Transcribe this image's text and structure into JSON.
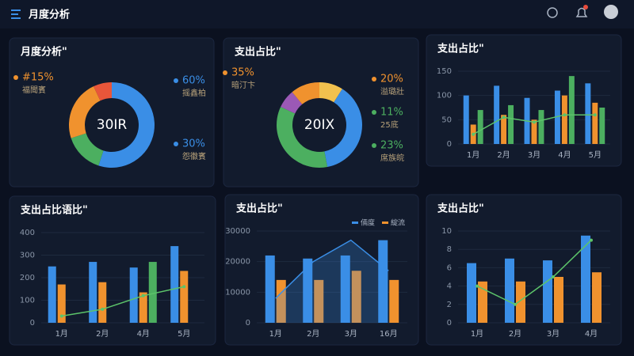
{
  "header": {
    "title": "月度分析"
  },
  "chart_data": [
    {
      "type": "donut",
      "title": "月度分析\"",
      "center": "30IR",
      "values": [
        55,
        15,
        23,
        7
      ],
      "colors": [
        "#3a8ee6",
        "#4caf60",
        "#f0922e",
        "#e8563a"
      ],
      "annotations": [
        {
          "text": "#15%",
          "sub": "福聞賓",
          "color": "#f0922e"
        },
        {
          "text": "60%",
          "sub": "摇鑫柏",
          "color": "#3a8ee6"
        },
        {
          "text": "30%",
          "sub": "怨徽賓",
          "color": "#3a8ee6"
        }
      ]
    },
    {
      "type": "donut",
      "title": "支出占比\"",
      "center": "20IX",
      "values": [
        9,
        38,
        35,
        7,
        11
      ],
      "colors": [
        "#f2c14e",
        "#3a8ee6",
        "#4caf60",
        "#9b59b6",
        "#f0922e"
      ],
      "annotations": [
        {
          "text": "35%",
          "sub": "暗汀卞",
          "color": "#f0922e"
        },
        {
          "text": "20%",
          "sub": "溢璐壯",
          "color": "#f0922e"
        },
        {
          "text": "11%",
          "sub": "25底",
          "color": "#4caf60"
        },
        {
          "text": "23%",
          "sub": "席族皖",
          "color": "#4caf60"
        }
      ]
    },
    {
      "type": "bar",
      "title": "支出占比\"",
      "categories": [
        "1月",
        "2月",
        "3月",
        "4月",
        "5月"
      ],
      "ylim": [
        0,
        150
      ],
      "yticks": [
        0,
        50,
        100,
        150
      ],
      "series": [
        {
          "kind": "bar",
          "color": "#3a8ee6",
          "values": [
            100,
            120,
            95,
            110,
            125
          ]
        },
        {
          "kind": "bar",
          "color": "#f0922e",
          "values": [
            40,
            60,
            50,
            100,
            85
          ]
        },
        {
          "kind": "bar",
          "color": "#4caf60",
          "values": [
            70,
            80,
            70,
            140,
            75
          ]
        },
        {
          "kind": "line",
          "color": "#5cc46a",
          "values": [
            20,
            55,
            45,
            60,
            60
          ]
        }
      ]
    },
    {
      "type": "bar",
      "title": "支出占比语比\"",
      "categories": [
        "1月",
        "2月",
        "4月",
        "5月"
      ],
      "ylim": [
        0,
        400
      ],
      "yticks": [
        0,
        100,
        200,
        300,
        400
      ],
      "series": [
        {
          "kind": "bar",
          "color": "#3a8ee6",
          "values": [
            250,
            270,
            245,
            340
          ]
        },
        {
          "kind": "bar",
          "color": "#f0922e",
          "values": [
            170,
            180,
            135,
            230
          ]
        },
        {
          "kind": "bar",
          "color": "#4caf60",
          "values": [
            null,
            null,
            270,
            null
          ]
        },
        {
          "kind": "line",
          "color": "#5cc46a",
          "values": [
            30,
            60,
            120,
            160
          ]
        }
      ]
    },
    {
      "type": "bar",
      "title": "支出占比\"",
      "categories": [
        "1月",
        "2月",
        "3月",
        "16月"
      ],
      "ylim": [
        0,
        30000
      ],
      "yticks": [
        0,
        10000,
        20000,
        30000
      ],
      "series": [
        {
          "kind": "bar",
          "name": "倆度",
          "color": "#3a8ee6",
          "values": [
            22000,
            21000,
            22000,
            27000
          ]
        },
        {
          "kind": "bar",
          "name": "綻流",
          "color": "#f0922e",
          "values": [
            14000,
            14000,
            17000,
            14000
          ]
        },
        {
          "kind": "area",
          "color": "#3a8ee6",
          "values": [
            8000,
            20000,
            27000,
            17000
          ]
        }
      ]
    },
    {
      "type": "bar",
      "title": "支出占比\"",
      "categories": [
        "1月",
        "2月",
        "3月",
        "4月"
      ],
      "ylim": [
        0,
        10
      ],
      "yticks": [
        0,
        2,
        4,
        6,
        8,
        10
      ],
      "series": [
        {
          "kind": "bar",
          "color": "#3a8ee6",
          "values": [
            6.5,
            7,
            6.8,
            9.5
          ]
        },
        {
          "kind": "bar",
          "color": "#f0922e",
          "values": [
            4.5,
            4.5,
            5,
            5.5
          ]
        },
        {
          "kind": "line",
          "color": "#5cc46a",
          "values": [
            4,
            2,
            5,
            9
          ]
        }
      ]
    }
  ]
}
